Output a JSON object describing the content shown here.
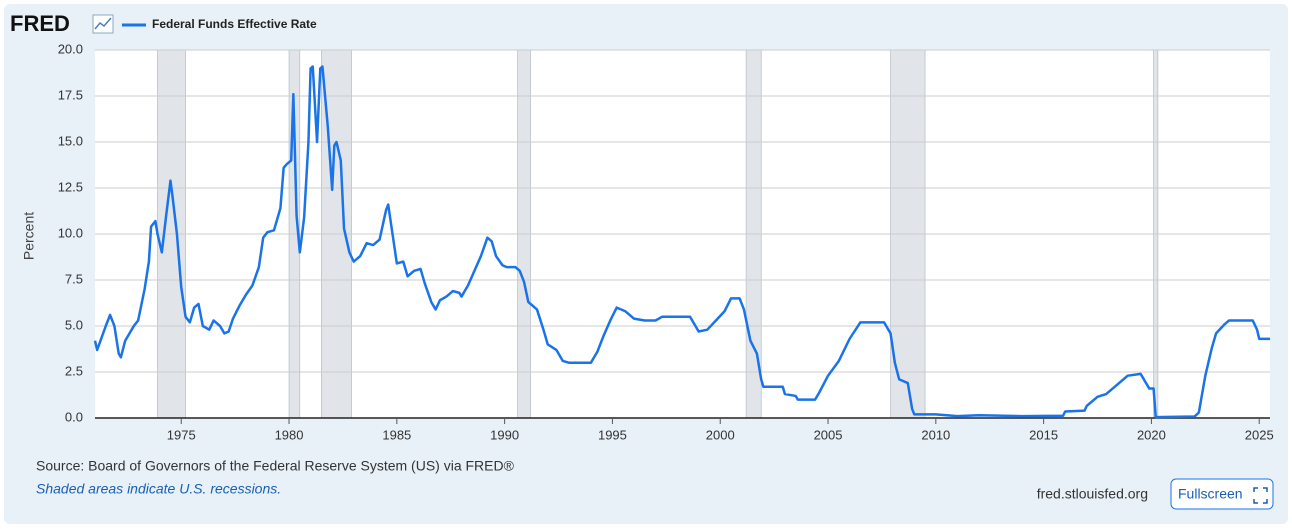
{
  "header": {
    "logo": "FRED"
  },
  "chart_data": {
    "type": "line",
    "ylabel": "Percent",
    "x": [
      1971.0,
      1971.1,
      1971.5,
      1971.7,
      1971.9,
      1972.1,
      1972.2,
      1972.4,
      1972.8,
      1973.0,
      1973.3,
      1973.5,
      1973.6,
      1973.8,
      1973.9,
      1974.1,
      1974.3,
      1974.5,
      1974.6,
      1974.8,
      1975.0,
      1975.2,
      1975.4,
      1975.6,
      1975.8,
      1976.0,
      1976.3,
      1976.5,
      1976.8,
      1977.0,
      1977.2,
      1977.4,
      1977.7,
      1978.0,
      1978.3,
      1978.6,
      1978.8,
      1979.0,
      1979.3,
      1979.6,
      1979.75,
      1979.9,
      1980.1,
      1980.2,
      1980.35,
      1980.5,
      1980.7,
      1980.9,
      1981.0,
      1981.1,
      1981.3,
      1981.45,
      1981.55,
      1981.8,
      1982.0,
      1982.1,
      1982.2,
      1982.4,
      1982.55,
      1982.8,
      1983.0,
      1983.3,
      1983.6,
      1983.9,
      1984.2,
      1984.5,
      1984.6,
      1984.8,
      1985.0,
      1985.3,
      1985.5,
      1985.8,
      1986.1,
      1986.3,
      1986.6,
      1986.8,
      1987.0,
      1987.3,
      1987.6,
      1987.9,
      1988.0,
      1988.3,
      1988.6,
      1988.9,
      1989.2,
      1989.4,
      1989.6,
      1989.9,
      1990.1,
      1990.5,
      1990.7,
      1990.9,
      1991.1,
      1991.5,
      1991.8,
      1992.0,
      1992.4,
      1992.7,
      1993.0,
      1993.5,
      1994.0,
      1994.3,
      1994.6,
      1994.9,
      1995.2,
      1995.6,
      1996.0,
      1996.5,
      1997.0,
      1997.3,
      1998.0,
      1998.6,
      1998.8,
      1999.0,
      1999.4,
      1999.8,
      2000.2,
      2000.5,
      2000.9,
      2001.1,
      2001.4,
      2001.7,
      2001.9,
      2002.0,
      2002.9,
      2003.0,
      2003.5,
      2003.6,
      2004.4,
      2004.6,
      2005.0,
      2005.5,
      2006.0,
      2006.5,
      2007.6,
      2007.9,
      2008.1,
      2008.3,
      2008.7,
      2008.9,
      2009.0,
      2010.0,
      2011.0,
      2012.0,
      2014.0,
      2015.9,
      2016.0,
      2016.9,
      2017.0,
      2017.5,
      2017.9,
      2018.5,
      2018.9,
      2019.5,
      2019.7,
      2019.9,
      2020.1,
      2020.2,
      2022.0,
      2022.2,
      2022.5,
      2022.8,
      2023.0,
      2023.4,
      2023.6,
      2024.7,
      2024.9,
      2025.0,
      2025.5
    ],
    "series": [
      {
        "name": "Federal Funds Effective Rate",
        "color": "#1a73e8",
        "values": [
          4.2,
          3.7,
          5.0,
          5.6,
          5.0,
          3.5,
          3.3,
          4.2,
          5.0,
          5.3,
          7.0,
          8.5,
          10.4,
          10.7,
          10.0,
          9.0,
          11.0,
          12.9,
          12.0,
          10.0,
          7.1,
          5.5,
          5.2,
          6.0,
          6.2,
          5.0,
          4.8,
          5.3,
          5.0,
          4.6,
          4.7,
          5.4,
          6.1,
          6.7,
          7.2,
          8.2,
          9.8,
          10.1,
          10.2,
          11.4,
          13.6,
          13.8,
          14.0,
          17.6,
          11.0,
          9.0,
          10.9,
          15.0,
          19.0,
          19.1,
          15.0,
          19.0,
          19.1,
          15.8,
          12.4,
          14.8,
          15.0,
          14.0,
          10.3,
          9.0,
          8.5,
          8.8,
          9.5,
          9.4,
          9.7,
          11.3,
          11.6,
          10.0,
          8.4,
          8.5,
          7.7,
          8.0,
          8.1,
          7.3,
          6.3,
          5.9,
          6.4,
          6.6,
          6.9,
          6.8,
          6.6,
          7.2,
          8.0,
          8.8,
          9.8,
          9.6,
          8.8,
          8.3,
          8.2,
          8.2,
          8.0,
          7.4,
          6.3,
          5.9,
          4.8,
          4.0,
          3.7,
          3.1,
          3.0,
          3.0,
          3.0,
          3.6,
          4.5,
          5.3,
          6.0,
          5.8,
          5.4,
          5.3,
          5.3,
          5.5,
          5.5,
          5.5,
          5.1,
          4.7,
          4.8,
          5.3,
          5.8,
          6.5,
          6.5,
          5.9,
          4.2,
          3.5,
          2.1,
          1.7,
          1.7,
          1.3,
          1.2,
          1.0,
          1.0,
          1.4,
          2.3,
          3.1,
          4.3,
          5.2,
          5.2,
          4.6,
          3.0,
          2.1,
          1.9,
          0.5,
          0.2,
          0.2,
          0.1,
          0.15,
          0.1,
          0.12,
          0.35,
          0.4,
          0.66,
          1.15,
          1.3,
          1.9,
          2.3,
          2.4,
          2.0,
          1.6,
          1.6,
          0.05,
          0.08,
          0.3,
          2.3,
          3.8,
          4.6,
          5.1,
          5.3,
          5.3,
          4.8,
          4.3,
          4.3
        ]
      }
    ],
    "recessions": [
      [
        1973.9,
        1975.2
      ],
      [
        1980.0,
        1980.5
      ],
      [
        1981.5,
        1982.9
      ],
      [
        1990.6,
        1991.2
      ],
      [
        2001.2,
        2001.9
      ],
      [
        2007.9,
        2009.5
      ],
      [
        2020.1,
        2020.3
      ]
    ],
    "xlim": [
      1971.0,
      2025.5
    ],
    "xticks": [
      1975,
      1980,
      1985,
      1990,
      1995,
      2000,
      2005,
      2010,
      2015,
      2020,
      2025
    ],
    "ylim": [
      0,
      20
    ],
    "yticks": [
      {
        "value": 0,
        "label": "0.0"
      },
      2.5,
      {
        "value": 5,
        "label": "5.0"
      },
      7.5,
      {
        "value": 10,
        "label": "10.0"
      },
      12.5,
      {
        "value": 15,
        "label": "15.0"
      },
      17.5,
      {
        "value": 20,
        "label": "20.0"
      }
    ],
    "grid": true
  },
  "footer": {
    "source": "Source: Board of Governors of the Federal Reserve System (US) via FRED®",
    "note": "Shaded areas indicate U.S. recessions.",
    "site": "fred.stlouisfed.org",
    "button": "Fullscreen"
  }
}
